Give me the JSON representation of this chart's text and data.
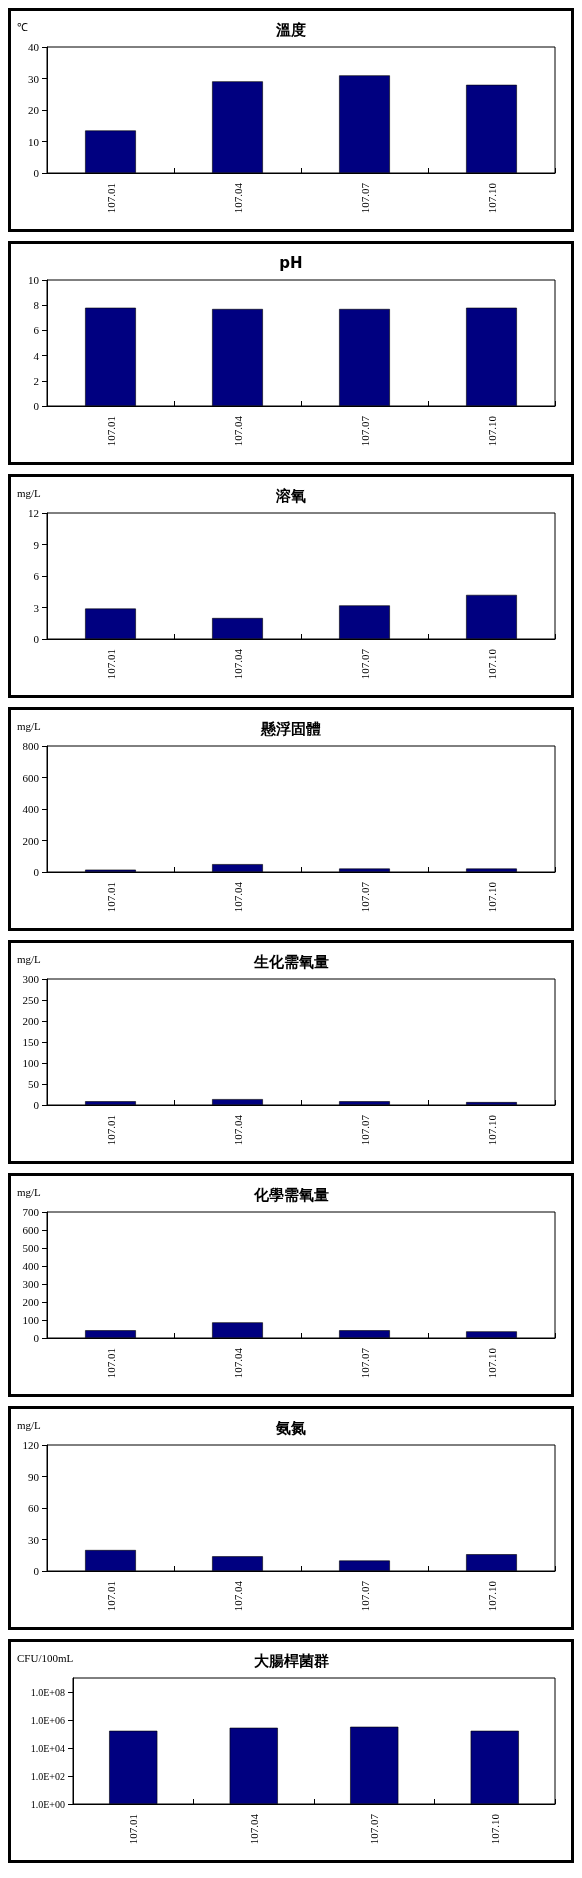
{
  "chart_data": [
    {
      "type": "bar",
      "title": "溫度",
      "ylabel": "℃",
      "categories": [
        "107.01",
        "107.04",
        "107.07",
        "107.10"
      ],
      "values": [
        13.5,
        29.1,
        31.0,
        28.0
      ],
      "color": "#000080",
      "ylim": [
        0,
        40
      ],
      "yticks": [
        0,
        10,
        20,
        30,
        40
      ],
      "grid": false
    },
    {
      "type": "bar",
      "title": "pH",
      "categories": [
        "107.01",
        "107.04",
        "107.07",
        "107.10"
      ],
      "values": [
        7.8,
        7.7,
        7.7,
        7.8
      ],
      "color": "#000080",
      "ylim": [
        0,
        10
      ],
      "yticks": [
        0,
        2,
        4,
        6,
        8,
        10
      ],
      "grid": false
    },
    {
      "type": "bar",
      "title": "溶氧",
      "ylabel": "mg/L",
      "categories": [
        "107.01",
        "107.04",
        "107.07",
        "107.10"
      ],
      "values": [
        2.9,
        2.0,
        3.2,
        4.2
      ],
      "color": "#000080",
      "ylim": [
        0,
        12
      ],
      "yticks": [
        0,
        3,
        6,
        9,
        12
      ],
      "grid": false
    },
    {
      "type": "bar",
      "title": "懸浮固體",
      "ylabel": "mg/L",
      "categories": [
        "107.01",
        "107.04",
        "107.07",
        "107.10"
      ],
      "values": [
        15,
        50,
        22,
        22
      ],
      "color": "#000080",
      "ylim": [
        0,
        800
      ],
      "yticks": [
        0,
        200,
        400,
        600,
        800
      ],
      "grid": false
    },
    {
      "type": "bar",
      "title": "生化需氧量",
      "ylabel": "mg/L",
      "categories": [
        "107.01",
        "107.04",
        "107.07",
        "107.10"
      ],
      "values": [
        9,
        14,
        9,
        7
      ],
      "color": "#000080",
      "ylim": [
        0,
        300
      ],
      "yticks": [
        0,
        50,
        100,
        150,
        200,
        250,
        300
      ],
      "grid": false
    },
    {
      "type": "bar",
      "title": "化學需氧量",
      "ylabel": "mg/L",
      "categories": [
        "107.01",
        "107.04",
        "107.07",
        "107.10"
      ],
      "values": [
        43,
        87,
        43,
        37
      ],
      "color": "#000080",
      "ylim": [
        0,
        700
      ],
      "yticks": [
        0,
        100,
        200,
        300,
        400,
        500,
        600,
        700
      ],
      "grid": false
    },
    {
      "type": "bar",
      "title": "氨氮",
      "ylabel": "mg/L",
      "categories": [
        "107.01",
        "107.04",
        "107.07",
        "107.10"
      ],
      "values": [
        20,
        14,
        10,
        16
      ],
      "color": "#000080",
      "ylim": [
        0,
        120
      ],
      "yticks": [
        0,
        30,
        60,
        90,
        120
      ],
      "grid": false
    },
    {
      "type": "bar",
      "title": "大腸桿菌群",
      "ylabel": "CFU/100mL",
      "categories": [
        "107.01",
        "107.04",
        "107.07",
        "107.10"
      ],
      "values": [
        170000,
        280000,
        330000,
        170000
      ],
      "color": "#000080",
      "log": true,
      "ylim": [
        1,
        1000000000
      ],
      "yticks": [
        {
          "value": 1,
          "label": "1.0E+00"
        },
        {
          "value": 100,
          "label": "1.0E+02"
        },
        {
          "value": 10000,
          "label": "1.0E+04"
        },
        {
          "value": 1000000,
          "label": "1.0E+06"
        },
        {
          "value": 100000000,
          "label": "1.0E+08"
        }
      ],
      "grid": false
    }
  ]
}
